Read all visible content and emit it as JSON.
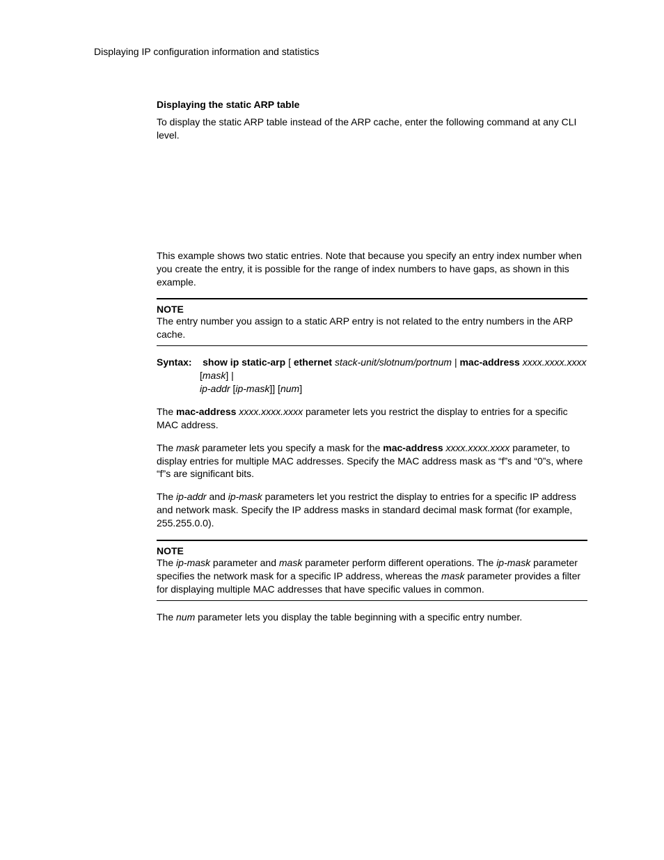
{
  "colors": {
    "text": "#000000",
    "background": "#ffffff",
    "rule": "#000000"
  },
  "typography": {
    "body_family": "Arial, Helvetica, sans-serif",
    "body_size_pt": 10.5,
    "heading_weight": "bold"
  },
  "header": {
    "running_title": "Displaying IP configuration information and statistics"
  },
  "section": {
    "title": "Displaying the static ARP table",
    "intro": "To display the static ARP table instead of the ARP cache, enter the following command at any CLI level.",
    "example_explain": "This example shows two static entries.  Note that because you specify an entry index number when you create the entry, it is possible for the range of index numbers to have gaps, as shown in this example."
  },
  "note1": {
    "label": "NOTE",
    "body": "The entry number you assign to a static ARP entry is not related to the entry numbers in the ARP cache."
  },
  "syntax": {
    "label": "Syntax:",
    "cmd_bold_1": "show ip static-arp",
    "seg_open": " [",
    "kw_ethernet": "ethernet",
    "arg_port": " stack-unit/slotnum/portnum",
    "sep_pipe": " | ",
    "kw_mac": "mac-address",
    "arg_mac": " xxxx.xxxx.xxxx",
    "line2_open": "[",
    "arg_mask": "mask",
    "line2_close": "] |",
    "line3_ipaddr": "ip-addr",
    "line3_open": " [",
    "line3_ipmask": "ip-mask",
    "line3_close1": "]] [",
    "line3_num": "num",
    "line3_close2": "]"
  },
  "para_mac": {
    "pre": "The ",
    "bold": "mac-address",
    "ital": " xxxx.xxxx.xxxx",
    "post": " parameter lets you restrict the display to entries for a specific MAC address."
  },
  "para_mask": {
    "pre": "The ",
    "ital1": "mask",
    "mid1": " parameter lets you specify a mask for the ",
    "bold": "mac-address",
    "ital2": " xxxx.xxxx.xxxx",
    "post": " parameter, to display entries for multiple MAC addresses.  Specify the MAC address mask as “f”s and “0”s, where “f”s are significant bits."
  },
  "para_ip": {
    "pre": "The ",
    "ital1": "ip-addr",
    "mid1": " and ",
    "ital2": "ip-mask",
    "post": " parameters let you restrict the display to entries for a specific IP address and network mask.  Specify the IP address masks in standard decimal mask format (for example, 255.255.0.0)."
  },
  "note2": {
    "label": "NOTE",
    "pre": "The ",
    "ital1": "ip-mask",
    "mid1": " parameter and ",
    "ital2": "mask",
    "mid2": " parameter perform different operations.  The ",
    "ital3": "ip-mask",
    "mid3": " parameter specifies the network mask for a specific IP address, whereas the ",
    "ital4": "mask",
    "post": " parameter provides a filter for displaying multiple MAC addresses that have specific values in common."
  },
  "para_num": {
    "pre": "The ",
    "ital": "num",
    "post": " parameter lets you display the table beginning with a specific entry number."
  }
}
